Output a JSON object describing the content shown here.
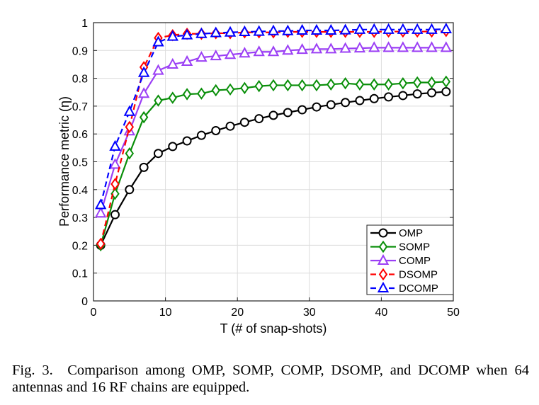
{
  "chart_data": {
    "type": "line",
    "xlabel": "T (# of snap-shots)",
    "ylabel": "Performance metric (η)",
    "xlim": [
      0,
      50
    ],
    "ylim": [
      0,
      1
    ],
    "xticks": [
      "0",
      "10",
      "20",
      "30",
      "40",
      "50"
    ],
    "yticks": [
      "0",
      "0.1",
      "0.2",
      "0.3",
      "0.4",
      "0.5",
      "0.6",
      "0.7",
      "0.8",
      "0.9",
      "1"
    ],
    "grid": true,
    "legend_position": "bottom-right",
    "x": [
      1,
      3,
      5,
      7,
      9,
      11,
      13,
      15,
      17,
      19,
      21,
      23,
      25,
      27,
      29,
      31,
      33,
      35,
      37,
      39,
      41,
      43,
      45,
      47,
      49
    ],
    "series": [
      {
        "name": "OMP",
        "color": "#000000",
        "marker": "circle",
        "dash": false,
        "values": [
          0.2,
          0.31,
          0.4,
          0.48,
          0.53,
          0.555,
          0.575,
          0.595,
          0.612,
          0.628,
          0.642,
          0.655,
          0.667,
          0.677,
          0.687,
          0.697,
          0.705,
          0.713,
          0.72,
          0.727,
          0.733,
          0.738,
          0.744,
          0.748,
          0.752
        ]
      },
      {
        "name": "SOMP",
        "color": "#0a8f0a",
        "marker": "diamond",
        "dash": false,
        "values": [
          0.2,
          0.385,
          0.53,
          0.66,
          0.72,
          0.73,
          0.743,
          0.745,
          0.757,
          0.76,
          0.765,
          0.772,
          0.775,
          0.775,
          0.775,
          0.775,
          0.778,
          0.782,
          0.778,
          0.778,
          0.778,
          0.782,
          0.785,
          0.785,
          0.788
        ]
      },
      {
        "name": "COMP",
        "color": "#9b3ff5",
        "marker": "triangle",
        "dash": false,
        "values": [
          0.315,
          0.49,
          0.61,
          0.745,
          0.828,
          0.85,
          0.86,
          0.875,
          0.88,
          0.885,
          0.89,
          0.895,
          0.895,
          0.9,
          0.903,
          0.905,
          0.905,
          0.907,
          0.908,
          0.91,
          0.91,
          0.91,
          0.91,
          0.91,
          0.91
        ]
      },
      {
        "name": "DSOMP",
        "color": "#ff0000",
        "marker": "diamond",
        "dash": true,
        "values": [
          0.205,
          0.42,
          0.625,
          0.84,
          0.945,
          0.955,
          0.96,
          0.96,
          0.962,
          0.962,
          0.965,
          0.965,
          0.965,
          0.967,
          0.967,
          0.967,
          0.967,
          0.967,
          0.967,
          0.967,
          0.968,
          0.968,
          0.968,
          0.968,
          0.97
        ]
      },
      {
        "name": "DCOMP",
        "color": "#0000ff",
        "marker": "triangle",
        "dash": true,
        "values": [
          0.345,
          0.555,
          0.68,
          0.82,
          0.93,
          0.95,
          0.955,
          0.96,
          0.963,
          0.965,
          0.967,
          0.968,
          0.97,
          0.97,
          0.972,
          0.972,
          0.972,
          0.973,
          0.975,
          0.975,
          0.975,
          0.975,
          0.975,
          0.975,
          0.977
        ]
      }
    ]
  },
  "caption": "Fig. 3. Comparison among OMP, SOMP, COMP, DSOMP, and DCOMP when 64 antennas and 16 RF chains are equipped."
}
